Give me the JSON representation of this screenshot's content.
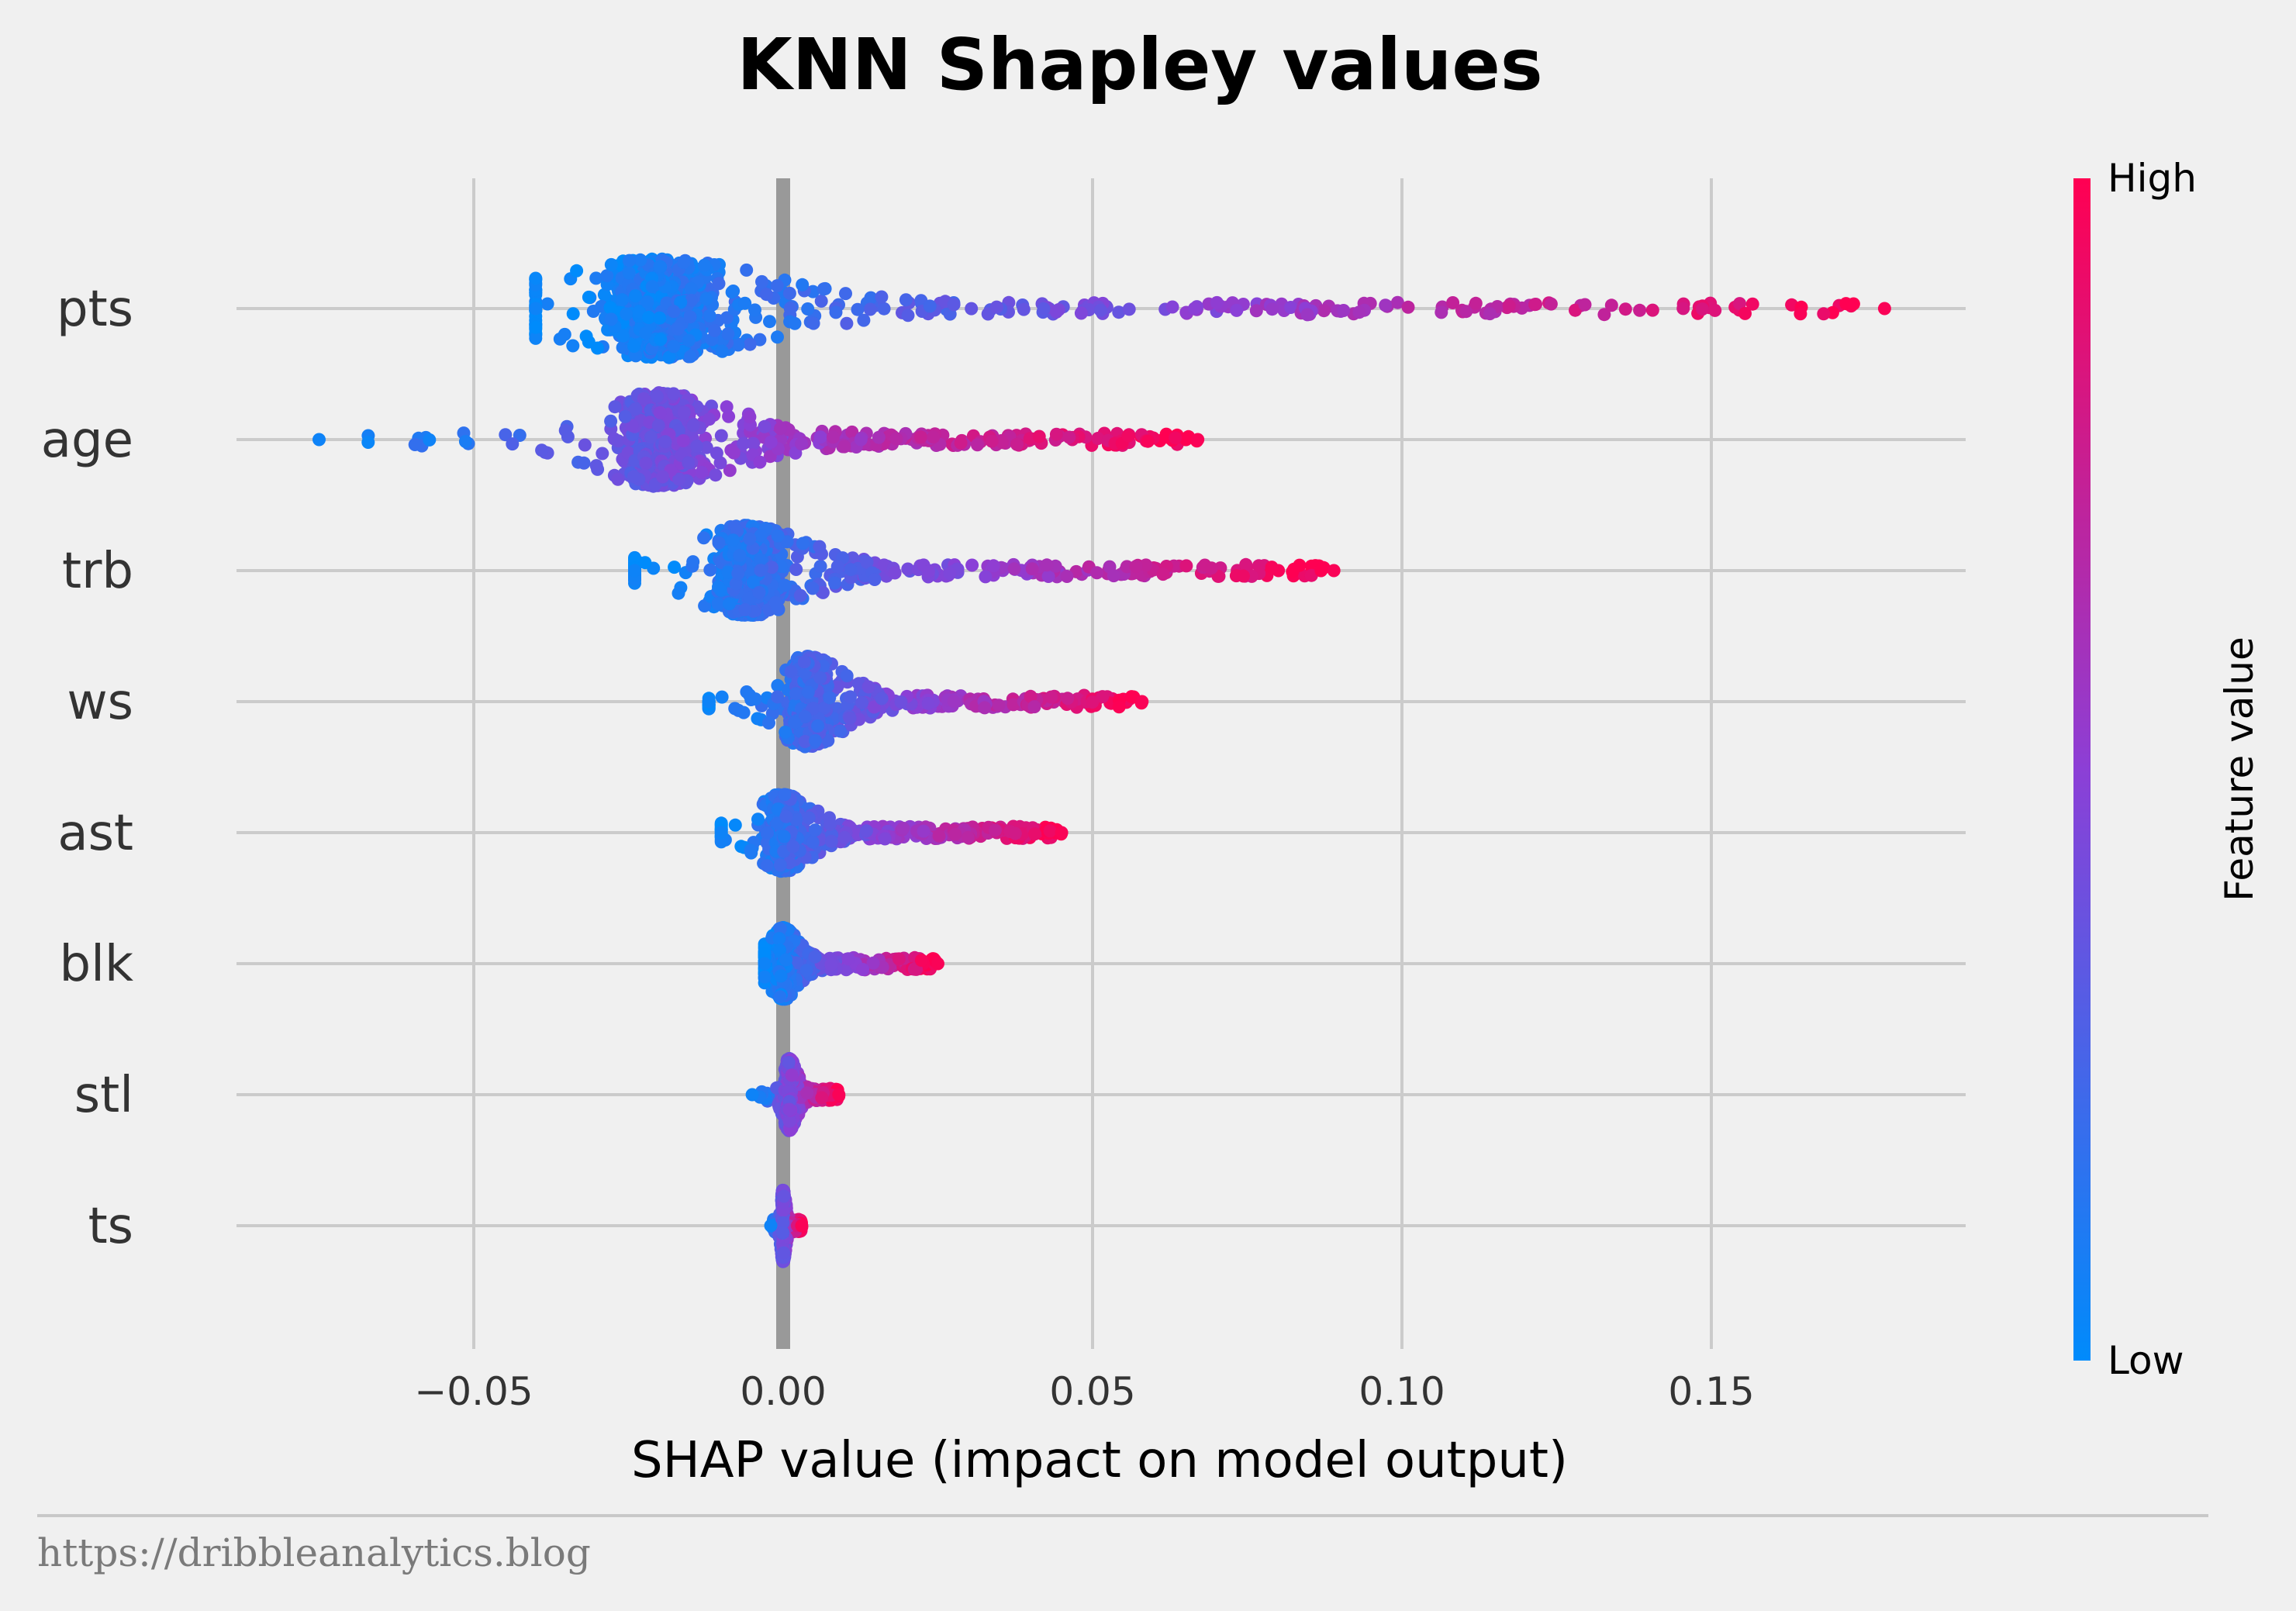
{
  "chart_data": {
    "type": "scatter",
    "subtype": "shap-beeswarm",
    "title": "KNN Shapley values",
    "xlabel": "SHAP value (impact on model output)",
    "xlim": [
      -0.088,
      0.19
    ],
    "x_ticks": [
      -0.05,
      0.0,
      0.05,
      0.1,
      0.15
    ],
    "x_tick_labels": [
      "−0.05",
      "0.00",
      "0.05",
      "0.10",
      "0.15"
    ],
    "grid": true,
    "colorbar": {
      "label": "Feature value",
      "high_label": "High",
      "low_label": "Low",
      "low_color": "#008bfb",
      "mid_color": "#8c3fd6",
      "high_color": "#ff0052"
    },
    "features": [
      {
        "name": "pts",
        "min": -0.04,
        "max": 0.178,
        "peak": -0.02,
        "max_spread": 0.8
      },
      {
        "name": "age",
        "min": -0.075,
        "max": 0.067,
        "peak": -0.02,
        "max_spread": 0.75
      },
      {
        "name": "trb",
        "min": -0.024,
        "max": 0.089,
        "peak": -0.006,
        "max_spread": 0.72
      },
      {
        "name": "ws",
        "min": -0.012,
        "max": 0.058,
        "peak": 0.004,
        "max_spread": 0.72
      },
      {
        "name": "ast",
        "min": -0.01,
        "max": 0.045,
        "peak": 0.0,
        "max_spread": 0.6
      },
      {
        "name": "blk",
        "min": -0.003,
        "max": 0.025,
        "peak": 0.0,
        "max_spread": 0.55
      },
      {
        "name": "stl",
        "min": -0.005,
        "max": 0.009,
        "peak": 0.001,
        "max_spread": 0.55
      },
      {
        "name": "ts",
        "min": -0.002,
        "max": 0.003,
        "peak": 0.0,
        "max_spread": 0.55
      }
    ]
  },
  "footer": {
    "source_url": "https://dribbleanalytics.blog"
  }
}
